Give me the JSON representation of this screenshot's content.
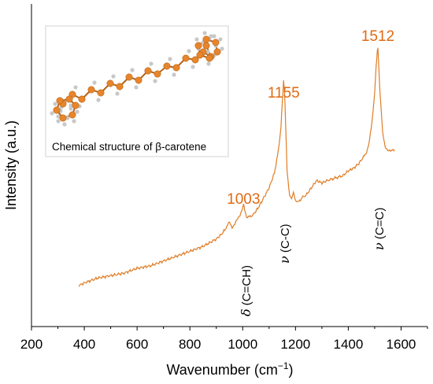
{
  "colors": {
    "series": "#e07d25",
    "peak_label": "#e06a12",
    "atom_carbon": "#e8852a",
    "atom_hydrogen": "#c8c8c8",
    "inset_border": "#d0d0d0"
  },
  "chart_data": {
    "type": "line",
    "xlabel_main": "Wavenumber (cm",
    "xlabel_sup": "−1",
    "xlabel_close": ")",
    "ylabel": "Intensity (a.u.)",
    "xlim": [
      200,
      1700
    ],
    "ylim": [
      0,
      1
    ],
    "xticks": [
      200,
      400,
      600,
      800,
      1000,
      1200,
      1400,
      1600
    ],
    "yticks": [],
    "grid": false,
    "legend": "none",
    "series": [
      {
        "x": [
          380,
          400,
          450,
          500,
          550,
          600,
          650,
          700,
          750,
          800,
          850,
          900,
          920,
          940,
          950,
          960,
          970,
          980,
          990,
          1000,
          1003,
          1008,
          1015,
          1025,
          1040,
          1060,
          1080,
          1100,
          1120,
          1135,
          1145,
          1150,
          1155,
          1160,
          1168,
          1178,
          1185,
          1192,
          1200,
          1210,
          1225,
          1240,
          1260,
          1280,
          1300,
          1320,
          1350,
          1380,
          1400,
          1420,
          1440,
          1460,
          1470,
          1480,
          1490,
          1500,
          1505,
          1510,
          1512,
          1515,
          1520,
          1530,
          1540,
          1550,
          1560,
          1570,
          1575
        ],
        "y": [
          0.03,
          0.04,
          0.06,
          0.07,
          0.08,
          0.1,
          0.11,
          0.13,
          0.15,
          0.17,
          0.19,
          0.22,
          0.24,
          0.27,
          0.29,
          0.27,
          0.28,
          0.3,
          0.32,
          0.35,
          0.36,
          0.34,
          0.31,
          0.31,
          0.32,
          0.35,
          0.39,
          0.43,
          0.49,
          0.58,
          0.68,
          0.78,
          0.87,
          0.79,
          0.5,
          0.4,
          0.39,
          0.41,
          0.38,
          0.37,
          0.39,
          0.4,
          0.43,
          0.46,
          0.45,
          0.46,
          0.47,
          0.48,
          0.5,
          0.51,
          0.53,
          0.56,
          0.58,
          0.62,
          0.7,
          0.82,
          0.92,
          0.99,
          1.0,
          0.94,
          0.82,
          0.66,
          0.6,
          0.58,
          0.58,
          0.59,
          0.58
        ]
      }
    ],
    "annotations": [
      {
        "text": "1003",
        "x": 1003,
        "kind": "peak"
      },
      {
        "text": "1155",
        "x": 1155,
        "kind": "peak"
      },
      {
        "text": "1512",
        "x": 1512,
        "kind": "peak"
      }
    ]
  },
  "modes": [
    {
      "symbol": "δ",
      "text": " (C=CH)"
    },
    {
      "symbol": "ν",
      "text": " (C-C)"
    },
    {
      "symbol": "ν",
      "text": " (C=C)"
    }
  ],
  "inset": {
    "caption": "Chemical structure of β-carotene"
  }
}
